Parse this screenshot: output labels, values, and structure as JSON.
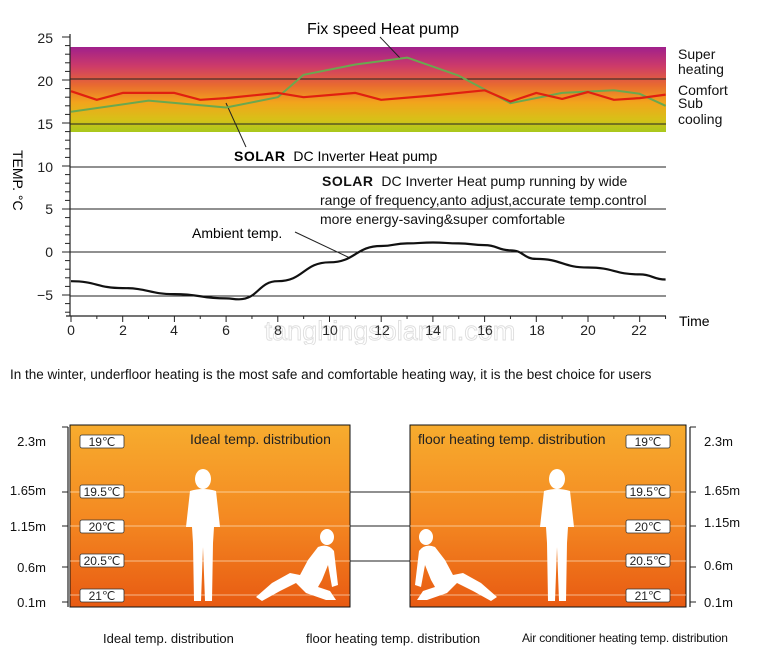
{
  "top_chart": {
    "title": "Fix speed Heat pump",
    "y_axis_label": "TEMP. °C",
    "x_axis_label": "Time",
    "y_ticks": [
      "25",
      "20",
      "15",
      "10",
      "5",
      "0",
      "−5"
    ],
    "x_ticks": [
      "0",
      "2",
      "4",
      "6",
      "8",
      "10",
      "12",
      "14",
      "16",
      "18",
      "20",
      "22"
    ],
    "bands": {
      "super_heating": "Super heating",
      "comfort": "Comfort",
      "sub_cooling": "Sub cooling"
    },
    "solar_label_brand": "SOLAR",
    "solar_label_rest": "DC Inverter Heat pump",
    "note_brand": "SOLAR",
    "note_line1_rest": "DC Inverter Heat pump running by wide",
    "note_line2": "range of frequency,anto adjust,accurate temp.control",
    "note_line3": "more energy-saving&super comfortable",
    "ambient_label": "Ambient temp.",
    "watermark": "tanghingsolaren.com",
    "colors": {
      "fix_speed_line": "#6aa84f",
      "solar_line": "#e02010",
      "ambient_line": "#111111",
      "band_top": "#a0208c",
      "band_bottom": "#a8c81c"
    }
  },
  "chart_data": {
    "type": "line",
    "xlabel": "Time",
    "ylabel": "TEMP. °C",
    "xlim": [
      0,
      23
    ],
    "ylim": [
      -7,
      25
    ],
    "series": [
      {
        "name": "Fix speed Heat pump",
        "x": [
          0,
          3,
          6,
          8,
          9,
          11,
          13,
          15,
          17,
          19,
          21,
          22,
          23
        ],
        "y": [
          16.3,
          17.6,
          16.8,
          18.0,
          20.6,
          21.8,
          22.6,
          20.5,
          17.3,
          18.5,
          18.8,
          18.4,
          17.0
        ]
      },
      {
        "name": "SOLAR DC Inverter Heat pump",
        "x": [
          0,
          1,
          2,
          4,
          5,
          6,
          8,
          9,
          11,
          12,
          14,
          16,
          17,
          18,
          19,
          20,
          21,
          22,
          23
        ],
        "y": [
          18.7,
          17.7,
          18.5,
          18.5,
          17.7,
          17.9,
          18.5,
          18.0,
          18.5,
          17.7,
          18.2,
          18.8,
          17.5,
          18.5,
          17.8,
          18.6,
          17.7,
          17.9,
          18.3
        ]
      },
      {
        "name": "Ambient temp.",
        "x": [
          0,
          2,
          4,
          6,
          6.5,
          8,
          10,
          12,
          13,
          14,
          15,
          16,
          17,
          18,
          20,
          22,
          23
        ],
        "y": [
          -3.4,
          -4.2,
          -4.9,
          -5.4,
          -5.5,
          -3.4,
          -1.2,
          0.7,
          1.0,
          1.1,
          1.0,
          0.8,
          0.2,
          -0.8,
          -1.8,
          -2.6,
          -3.2
        ]
      }
    ]
  },
  "caption": "In the winter, underfloor heating is the most safe and comfortable heating way, it is the best choice for users",
  "floor_diagrams": {
    "heights": [
      "2.3m",
      "1.65m",
      "1.15m",
      "0.6m",
      "0.1m"
    ],
    "left_panel": {
      "title": "Ideal temp. distribution",
      "temps": [
        "19℃",
        "19.5℃",
        "20℃",
        "20.5℃",
        "21℃"
      ]
    },
    "right_panel": {
      "title": "floor heating temp. distribution",
      "temps": [
        "19℃",
        "19.5℃",
        "20℃",
        "20.5℃",
        "21℃"
      ]
    },
    "bottom_labels": [
      "Ideal temp. distribution",
      "floor heating temp. distribution",
      "Air conditioner heating temp. distribution"
    ],
    "colors": {
      "panel_top": "#f7ac2e",
      "panel_bottom": "#e85a12"
    }
  }
}
